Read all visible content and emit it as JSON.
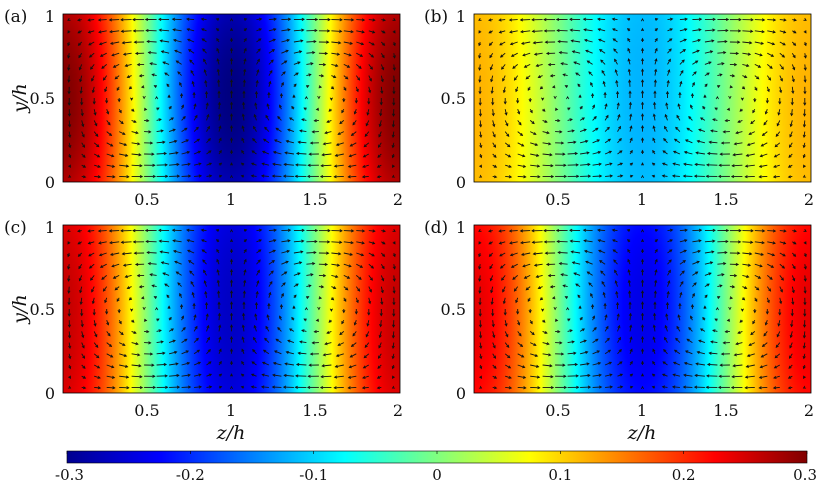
{
  "chart_data": {
    "type": "heatmap",
    "colormap": "jet",
    "arrows": "in-plane velocity vectors (black quivers) overlaid on each panel",
    "panels": [
      {
        "label": "(a)",
        "xlabel": "",
        "ylabel": "y/h",
        "xlim": [
          0,
          2
        ],
        "ylim": [
          0,
          1
        ],
        "xticks": [
          "0.5",
          "1",
          "1.5",
          "2"
        ],
        "yticks": [
          "0",
          "0.5",
          "1"
        ],
        "field": {
          "form": "A*cos(pi*z)",
          "amplitude": 0.3,
          "y_modulation": 0.1
        }
      },
      {
        "label": "(b)",
        "xlabel": "",
        "ylabel": "",
        "xlim": [
          0,
          2
        ],
        "ylim": [
          0,
          1
        ],
        "xticks": [
          "0.5",
          "1",
          "1.5",
          "2"
        ],
        "yticks": [
          "0",
          "0.5",
          "1"
        ],
        "field": {
          "form": "A*cos(pi*z)",
          "amplitude": 0.12,
          "y_modulation": 0.05
        }
      },
      {
        "label": "(c)",
        "xlabel": "z/h",
        "ylabel": "y/h",
        "xlim": [
          0,
          2
        ],
        "ylim": [
          0,
          1
        ],
        "xticks": [
          "0.5",
          "1",
          "1.5",
          "2"
        ],
        "yticks": [
          "0",
          "0.5",
          "1"
        ],
        "field": {
          "form": "A*cos(pi*z)",
          "amplitude": 0.26,
          "y_modulation": 0.06
        }
      },
      {
        "label": "(d)",
        "xlabel": "z/h",
        "ylabel": "",
        "xlim": [
          0,
          2
        ],
        "ylim": [
          0,
          1
        ],
        "xticks": [
          "0.5",
          "1",
          "1.5",
          "2"
        ],
        "yticks": [
          "0",
          "0.5",
          "1"
        ],
        "field": {
          "form": "A*cos(pi*z)",
          "amplitude": 0.24,
          "y_modulation": 0.08
        }
      }
    ],
    "colorbar": {
      "range": [
        -0.3,
        0.3
      ],
      "ticks": [
        "-0.3",
        "-0.2",
        "-0.1",
        "0",
        "0.1",
        "0.2",
        "0.3"
      ]
    }
  }
}
